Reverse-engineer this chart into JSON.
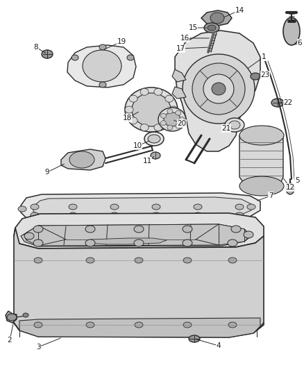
{
  "bg_color": "#ffffff",
  "line_color": "#2a2a2a",
  "label_color": "#1a1a1a",
  "fig_width": 4.38,
  "fig_height": 5.33,
  "dpi": 100
}
